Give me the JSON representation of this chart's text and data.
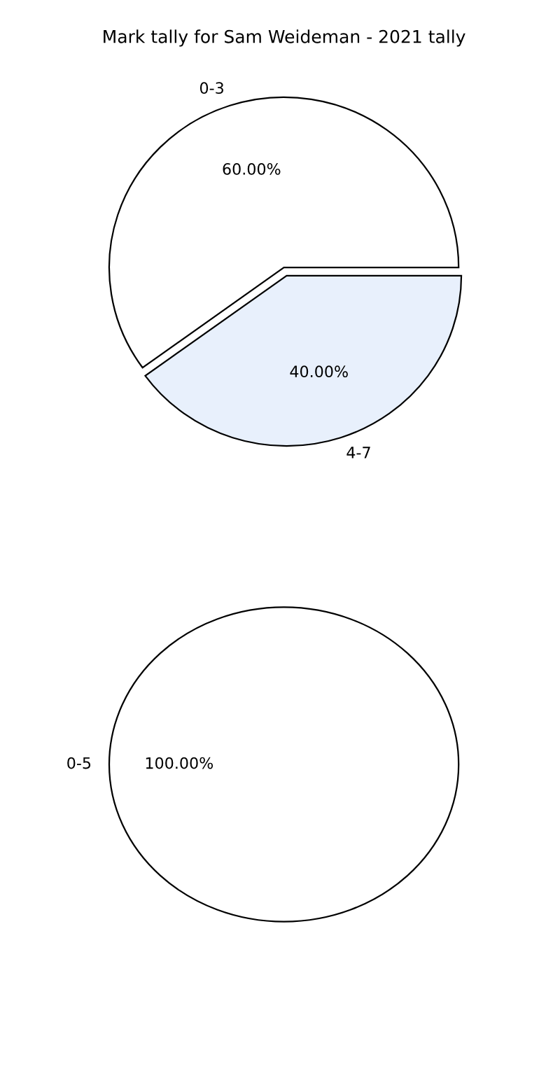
{
  "chart_data": [
    {
      "type": "pie",
      "title": "Mark tally for Sam Weideman - 2021 tally",
      "categories": [
        "0-3",
        "4-7"
      ],
      "values": [
        60,
        40
      ],
      "colors": [
        "#ffffff",
        "#e8f0fc"
      ],
      "value_labels": [
        "60.00%",
        "40.00%"
      ]
    },
    {
      "type": "pie",
      "categories": [
        "0-5"
      ],
      "values": [
        100
      ],
      "colors": [
        "#ffffff"
      ],
      "value_labels": [
        "100.00%"
      ]
    }
  ]
}
